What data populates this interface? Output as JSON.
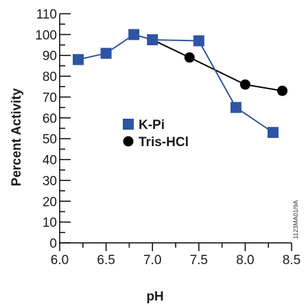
{
  "chart_data": {
    "type": "line",
    "xlabel": "pH",
    "ylabel": "Percent Activity",
    "xlim": [
      6.0,
      8.5
    ],
    "ylim": [
      0,
      110
    ],
    "xticks": [
      "6.0",
      "6.5",
      "7.0",
      "7.5",
      "8.0",
      "8.5"
    ],
    "yticks": [
      "0",
      "10",
      "20",
      "30",
      "40",
      "50",
      "60",
      "70",
      "80",
      "90",
      "100",
      "110"
    ],
    "grid": false,
    "legend_position": "center",
    "series": [
      {
        "name": "K-Pi",
        "marker": "square",
        "color": "#2e55a3",
        "x": [
          6.2,
          6.5,
          6.8,
          7.0,
          7.5,
          7.9,
          8.3
        ],
        "y": [
          88,
          91,
          100,
          97.5,
          97,
          65,
          53
        ]
      },
      {
        "name": "Tris-HCl",
        "marker": "circle",
        "color": "#000000",
        "x": [
          7.0,
          7.4,
          8.0,
          8.4
        ],
        "y": [
          97.5,
          89,
          76,
          73
        ]
      }
    ],
    "annotation": "1123MA01/9A"
  }
}
